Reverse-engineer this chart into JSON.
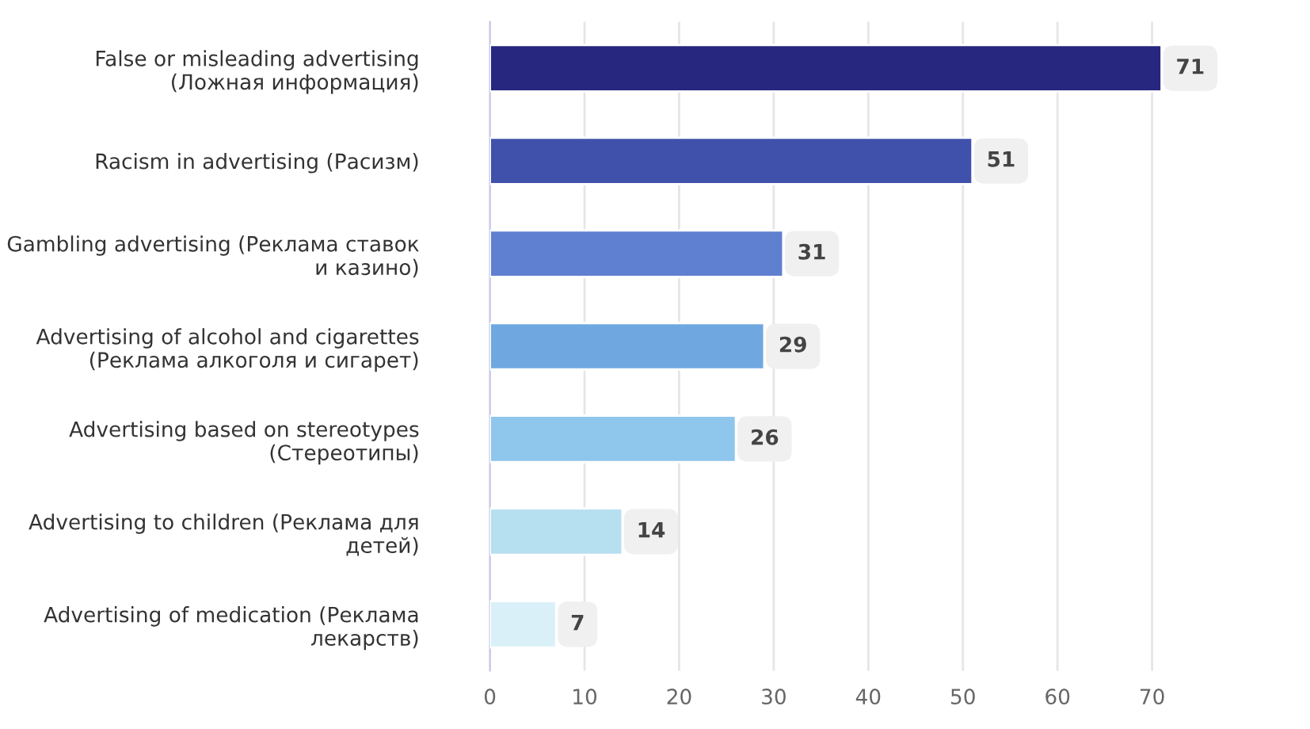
{
  "chart_data": {
    "type": "bar",
    "orientation": "horizontal",
    "categories": [
      "False or misleading advertising\n(Ложная информация)",
      "Racism in advertising (Расизм)",
      "Gambling advertising (Реклама ставок\nи казино)",
      "Advertising of alcohol and cigarettes\n(Реклама алкоголя и сигарет)",
      "Advertising based on stereotypes\n(Стереотипы)",
      "Advertising to children (Реклама для\nдетей)",
      "Advertising of medication (Реклама\nлекарств)"
    ],
    "values": [
      71,
      51,
      31,
      29,
      26,
      14,
      7
    ],
    "colors": [
      "#27277f",
      "#3f51aa",
      "#5f7fd0",
      "#6fa8e0",
      "#8fc6ec",
      "#b6dff0",
      "#daf0f8"
    ],
    "xlim": [
      0,
      77
    ],
    "xticks": [
      0,
      10,
      20,
      30,
      40,
      50,
      60,
      70
    ],
    "grid": "x",
    "data_labels": true
  }
}
